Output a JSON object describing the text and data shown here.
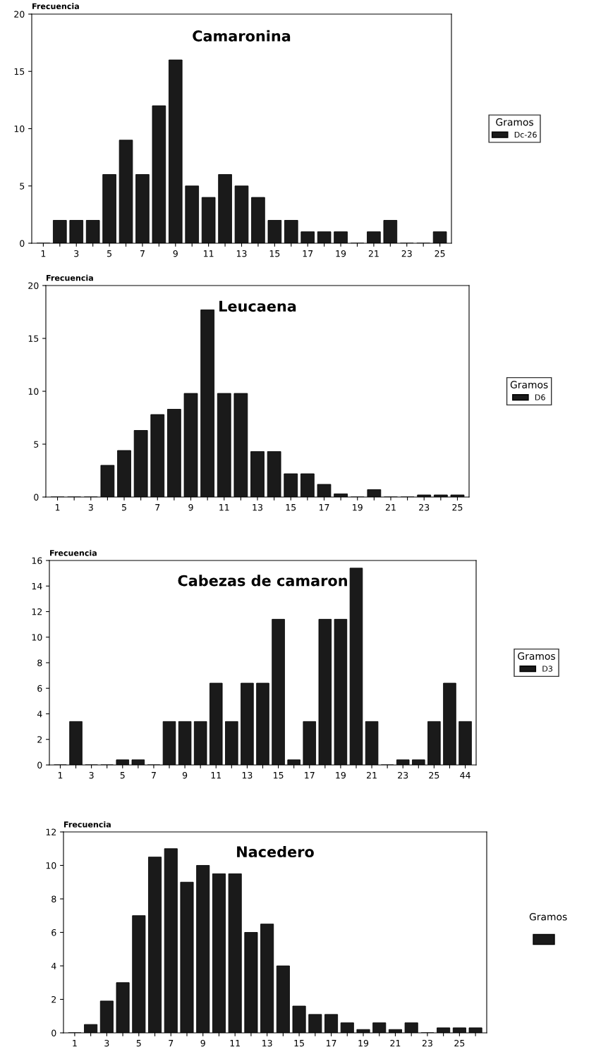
{
  "chart_data": [
    {
      "type": "bar",
      "title": "Camaronina",
      "ylabel": "Frecuencia",
      "legend_title": "Gramos",
      "legend": "right",
      "grid": false,
      "categories": [
        "1",
        null,
        "3",
        null,
        "5",
        null,
        "7",
        null,
        "9",
        null,
        "11",
        null,
        "13",
        null,
        "15",
        null,
        "17",
        null,
        "19",
        null,
        "21",
        null,
        "23",
        null,
        "25"
      ],
      "series": [
        {
          "name": "Dc-26",
          "color": "#1a1a1a",
          "values": [
            0,
            2,
            2,
            2,
            6,
            9,
            6,
            12,
            16,
            5,
            4,
            6,
            5,
            4,
            2,
            2,
            1,
            1,
            1,
            0,
            1,
            2,
            0,
            0,
            1
          ]
        }
      ],
      "ylim": [
        0,
        20
      ],
      "yticks": [
        0,
        5,
        10,
        15,
        20
      ]
    },
    {
      "type": "bar",
      "title": "Leucaena",
      "ylabel": "Frecuencia",
      "legend_title": "Gramos",
      "legend": "right",
      "grid": false,
      "categories": [
        "1",
        null,
        "3",
        null,
        "5",
        null,
        "7",
        null,
        "9",
        null,
        "11",
        null,
        "13",
        null,
        "15",
        null,
        "17",
        null,
        "19",
        null,
        "21",
        null,
        "23",
        null,
        "25"
      ],
      "series": [
        {
          "name": "D6",
          "color": "#1a1a1a",
          "values": [
            0,
            0,
            0,
            3,
            4.4,
            6.3,
            7.8,
            8.3,
            9.8,
            17.7,
            9.8,
            9.8,
            4.3,
            4.3,
            2.2,
            2.2,
            1.2,
            0.3,
            0,
            0.7,
            0,
            0,
            0.2,
            0.2,
            0.2
          ]
        }
      ],
      "ylim": [
        0,
        20
      ],
      "yticks": [
        0,
        5,
        10,
        15,
        20
      ]
    },
    {
      "type": "bar",
      "title": "Cabezas de camaron",
      "ylabel": "Frecuencia",
      "legend_title": "Gramos",
      "legend": "right",
      "grid": false,
      "categories": [
        "1",
        null,
        "3",
        null,
        "5",
        null,
        "7",
        null,
        "9",
        null,
        "11",
        null,
        "13",
        null,
        "15",
        null,
        "17",
        null,
        "19",
        null,
        "21",
        null,
        "23",
        null,
        "25",
        null,
        "44"
      ],
      "series": [
        {
          "name": "D3",
          "color": "#1a1a1a",
          "values": [
            0,
            3.4,
            0,
            0,
            0.4,
            0.4,
            0,
            3.4,
            3.4,
            3.4,
            6.4,
            3.4,
            6.4,
            6.4,
            11.4,
            0.4,
            3.4,
            11.4,
            11.4,
            15.4,
            3.4,
            0,
            0.4,
            0.4,
            3.4,
            6.4,
            3.4
          ]
        }
      ],
      "ylim": [
        0,
        16
      ],
      "yticks": [
        0,
        2,
        4,
        6,
        8,
        10,
        12,
        14,
        16
      ]
    },
    {
      "type": "bar",
      "title": "Nacedero",
      "ylabel": "Frecuencia",
      "annotations": [
        "Gramos"
      ],
      "grid": false,
      "categories": [
        "1",
        null,
        "3",
        null,
        "5",
        null,
        "7",
        null,
        "9",
        null,
        "11",
        null,
        "13",
        null,
        "15",
        null,
        "17",
        null,
        "19",
        null,
        "21",
        null,
        "23",
        null,
        "25",
        null
      ],
      "series": [
        {
          "color": "#1a1a1a",
          "values": [
            0,
            0.5,
            1.9,
            3,
            7,
            10.5,
            11,
            9,
            10,
            9.5,
            9.5,
            6,
            6.5,
            4,
            1.6,
            1.1,
            1.1,
            0.6,
            0.2,
            0.6,
            0.2,
            0.6,
            0,
            0.3,
            0.3,
            0.3
          ]
        }
      ],
      "ylim": [
        0,
        12
      ],
      "yticks": [
        0,
        2,
        4,
        6,
        8,
        10,
        12
      ]
    }
  ]
}
